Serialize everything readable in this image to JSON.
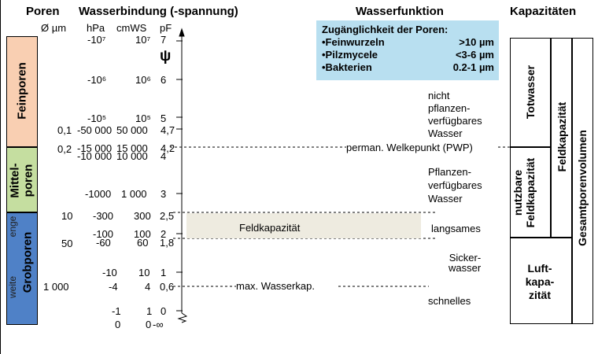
{
  "headers": {
    "poren": "Poren",
    "wasserbindung": "Wasserbindung (-spannung)",
    "wasserfunktion": "Wasserfunktion",
    "kapazitaeten": "Kapazitäten"
  },
  "units": {
    "diameter": "Ø µm",
    "hpa": "hPa",
    "cmws": "cmWS",
    "pf": "pF",
    "psi": "ψ"
  },
  "pore_classes": {
    "feinporen": "Feinporen",
    "mittelporen": "Mittel-\nporen",
    "grobporen": "Grobporen",
    "enge": "enge",
    "weite": "weite"
  },
  "diameters": [
    "0,1",
    "0,2",
    "10",
    "50",
    "1 000"
  ],
  "scale_rows": [
    {
      "hpa": "-10⁷",
      "cmws": "10⁷",
      "pf": "7"
    },
    {
      "hpa": "-10⁶",
      "cmws": "10⁶",
      "pf": "6"
    },
    {
      "hpa": "-10⁵",
      "cmws": "10⁵",
      "pf": "5"
    },
    {
      "hpa": "-50 000",
      "cmws": "50 000",
      "pf": "4,7"
    },
    {
      "hpa": "-15 000",
      "cmws": "15 000",
      "pf": "4,2"
    },
    {
      "hpa": "-10 000",
      "cmws": "10 000",
      "pf": "4"
    },
    {
      "hpa": "-1000",
      "cmws": "1 000",
      "pf": "3"
    },
    {
      "hpa": "-300",
      "cmws": "300",
      "pf": "2,5"
    },
    {
      "hpa": "-100",
      "cmws": "100",
      "pf": "2"
    },
    {
      "hpa": "-60",
      "cmws": "60",
      "pf": "1,8"
    },
    {
      "hpa": "-10",
      "cmws": "10",
      "pf": "1"
    },
    {
      "hpa": "-4",
      "cmws": "4",
      "pf": "0,6"
    },
    {
      "hpa": "-1",
      "cmws": "1",
      "pf": "0"
    },
    {
      "hpa": "0",
      "cmws": "0",
      "pf": "-∞"
    }
  ],
  "infobox": {
    "title": "Zugänglichkeit der Poren:",
    "rows": [
      {
        "label": "•Feinwurzeln",
        "value": ">10 µm"
      },
      {
        "label": "•Pilzmycele",
        "value": "<3-6 µm"
      },
      {
        "label": "•Bakterien",
        "value": "0.2-1 µm"
      }
    ]
  },
  "water_function": {
    "nicht_verfuegbar": [
      "nicht",
      "pflanzen-",
      "verfügbares",
      "Wasser"
    ],
    "pwp": "perman. Welkepunkt (PWP)",
    "verfuegbar": [
      "Pflanzen-",
      "verfügbares",
      "Wasser"
    ],
    "feldkapazitaet": "Feldkapazität",
    "langsames": "langsames",
    "sickerwasser": [
      "Sicker-",
      "wasser"
    ],
    "max_wasserkap": "max. Wasserkap.",
    "schnelles": "schnelles"
  },
  "capacities": {
    "totwasser": "Totwasser",
    "nutzbare_fk": [
      "nutzbare",
      "Feldkapazität"
    ],
    "feldkapazitaet": "Feldkapazität",
    "luftkapazitaet": [
      "Luft-",
      "kapa-",
      "zität"
    ],
    "gesamtporenvolumen": "Gesamtporenvolumen"
  },
  "colors": {
    "feinporen": "#f9cfb2",
    "mittelporen": "#c5dea0",
    "grobporen": "#4f81c7",
    "infobox": "#b8dff0",
    "feldkap_band": "#eeebe0"
  }
}
